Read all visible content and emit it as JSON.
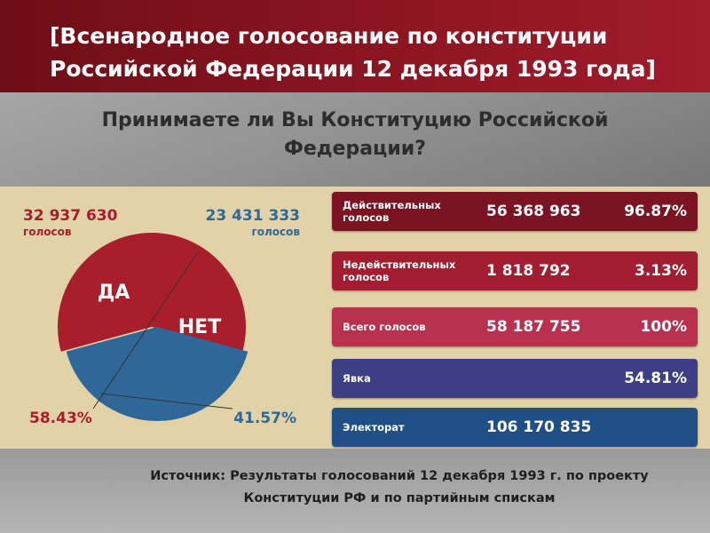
{
  "header": {
    "title": "[Всенародное голосование по конституции Российской Федерации 12 декабря 1993 года]"
  },
  "question": "Принимаете ли Вы Конституцию Российской Федерации?",
  "results_table": [
    {
      "label": "Действительных\nголосов",
      "count": "56 368 963",
      "pct": "96.87%",
      "color": "#7c1322"
    },
    {
      "label": "Недействительных\nголосов",
      "count": "1 818 792",
      "pct": "3.13%",
      "color": "#a11d2f"
    },
    {
      "label": "Всего голосов",
      "count": "58 187 755",
      "pct": "100%",
      "color": "#b8324f"
    },
    {
      "label": "Явка",
      "count": "",
      "pct": "54.81%",
      "color": "#3d3f85"
    },
    {
      "label": "Электорат",
      "count": "106 170 835",
      "pct": "",
      "color": "#1f4f86"
    }
  ],
  "chart_data": {
    "type": "pie",
    "slices": [
      {
        "label": "ДА",
        "value": 32937630,
        "value_text": "32 937 630",
        "unit_text": "голосов",
        "percent": 58.43,
        "percent_text": "58.43%",
        "color": "#a81e2b"
      },
      {
        "label": "НЕТ",
        "value": 23431333,
        "value_text": "23 431 333",
        "unit_text": "голосов",
        "percent": 41.57,
        "percent_text": "41.57%",
        "color": "#2f6898"
      }
    ]
  },
  "source": "Источник: Результаты голосований 12 декабря 1993 г. по проекту Конституции РФ и по партийным спискам"
}
